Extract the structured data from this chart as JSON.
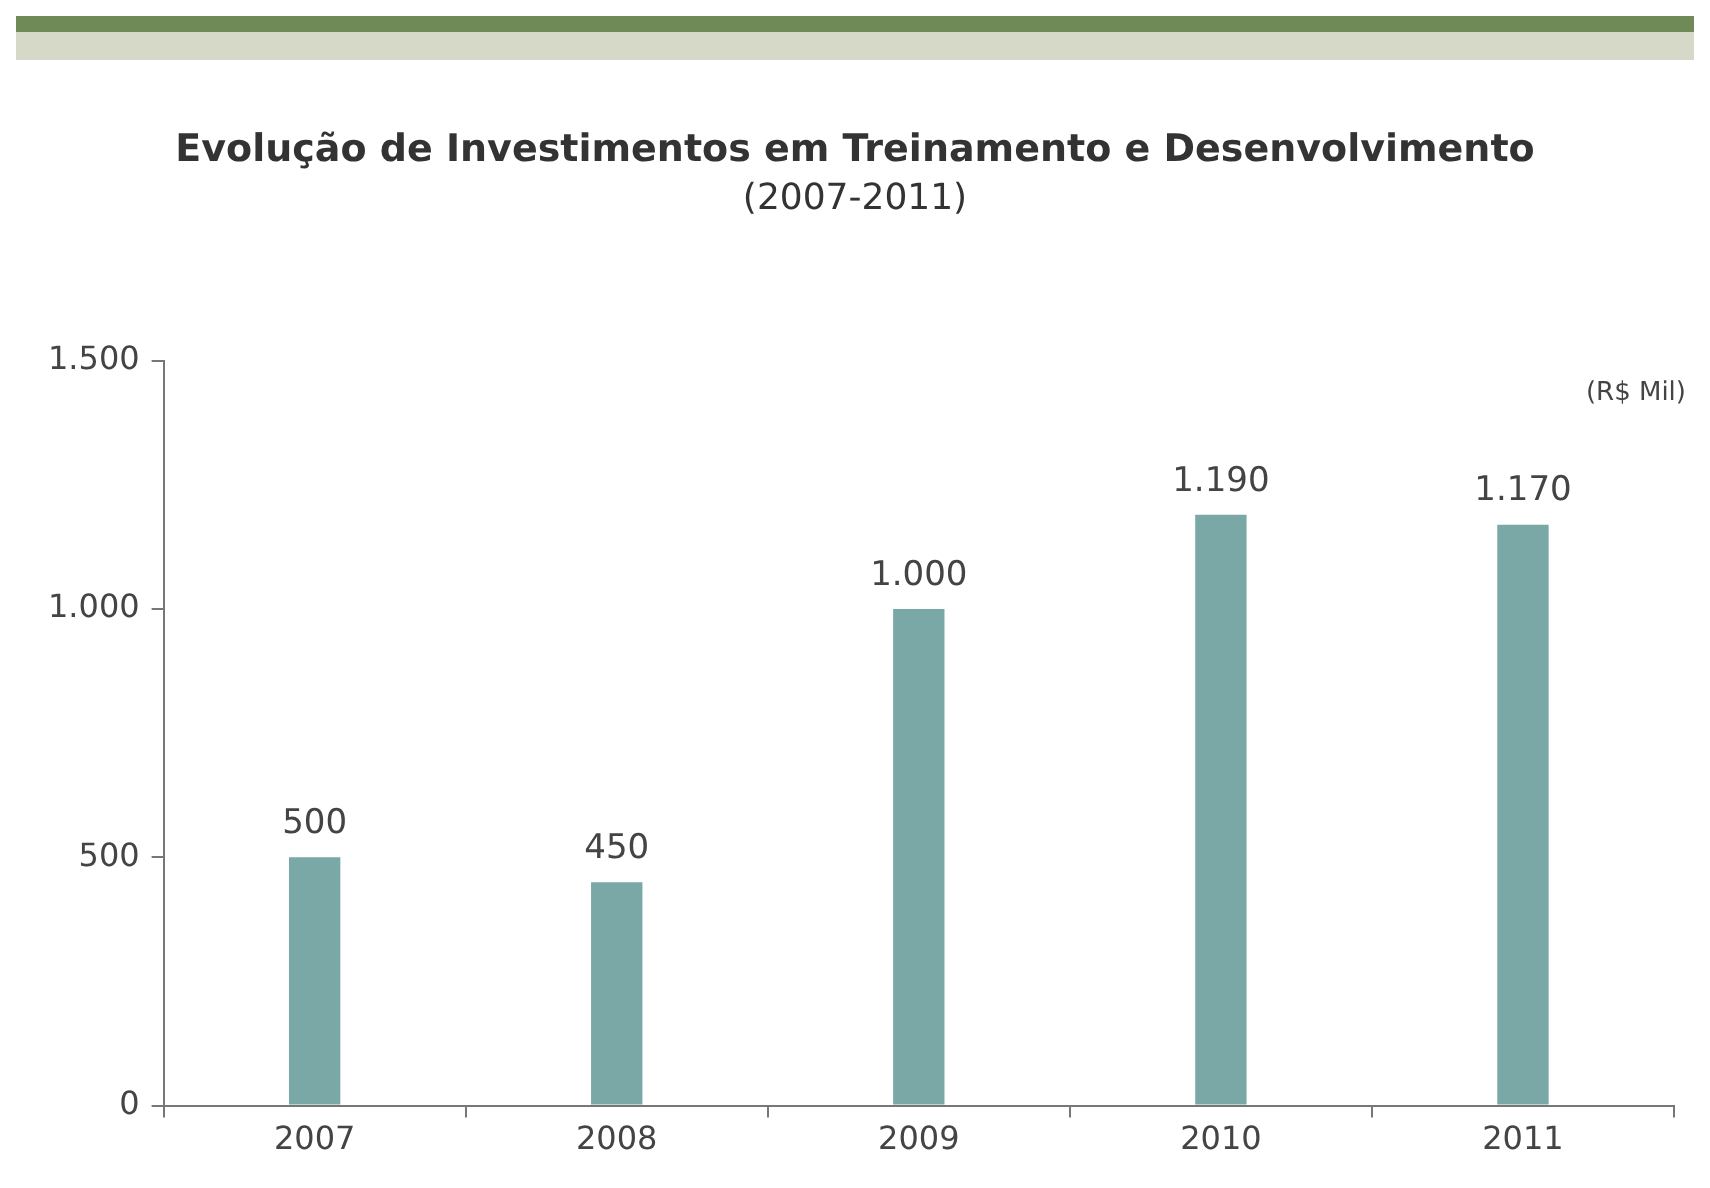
{
  "chart_data": {
    "type": "bar",
    "title": "Evolução de Investimentos em Treinamento e Desenvolvimento",
    "subtitle": "(2007-2011)",
    "annotations": [
      "(R$ Mil)"
    ],
    "categories": [
      "2007",
      "2008",
      "2009",
      "2010",
      "2011"
    ],
    "values": [
      500,
      450,
      1000,
      1190,
      1170
    ],
    "value_labels": [
      "500",
      "450",
      "1.000",
      "1.190",
      "1.170"
    ],
    "color": "#79a8a6",
    "ylim": [
      0,
      1500
    ],
    "yticks": [
      {
        "value": 0,
        "label": "0"
      },
      {
        "value": 500,
        "label": "500"
      },
      {
        "value": 1000,
        "label": "1.000"
      },
      {
        "value": 1500,
        "label": "1.500"
      }
    ],
    "grid": false,
    "legend": false
  }
}
